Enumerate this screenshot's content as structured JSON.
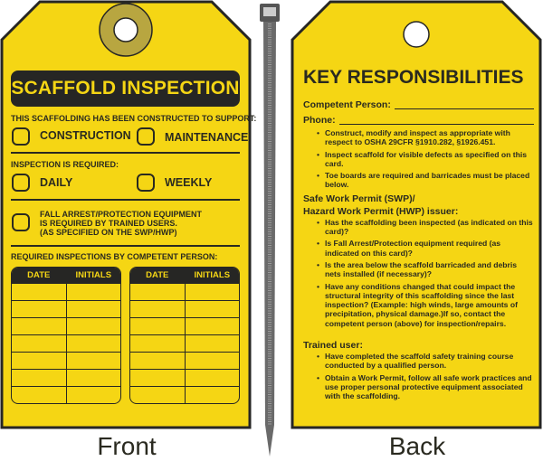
{
  "colors": {
    "tag": "#f5d614",
    "ink": "#262624",
    "grommet": "#b8a640"
  },
  "front": {
    "title": "SCAFFOLD INSPECTION",
    "support_label": "THIS SCAFFOLDING HAS BEEN CONSTRUCTED TO SUPPORT:",
    "support_options": [
      "CONSTRUCTION",
      "MAINTENANCE"
    ],
    "inspection_label": "INSPECTION IS REQUIRED:",
    "inspection_options": [
      "DAILY",
      "WEEKLY"
    ],
    "fall_arrest": [
      "FALL ARREST/PROTECTION EQUIPMENT",
      "IS REQUIRED BY TRAINED USERS.",
      "(AS SPECIFIED ON THE SWP/HWP)"
    ],
    "log_label": "REQUIRED INSPECTIONS BY COMPETENT PERSON:",
    "log_columns": [
      "DATE",
      "INITIALS"
    ],
    "caption": "Front"
  },
  "back": {
    "title": "KEY RESPONSIBILITIES",
    "competent_person_label": "Competent Person:",
    "phone_label": "Phone:",
    "competent_bullets": [
      "Construct, modify and inspect as appropriate with respect to OSHA  29CFR §1910.282, §1926.451.",
      "Inspect scaffold for visible defects as specified on this card.",
      "Toe boards are required and barricades must be placed below."
    ],
    "issuer_label_1": "Safe Work Permit (SWP)/",
    "issuer_label_2": "Hazard Work Permit (HWP) issuer:",
    "issuer_bullets": [
      "Has the scaffolding been inspected (as indicated on this card)?",
      "Is Fall Arrest/Protection equipment required (as indicated on this card)?",
      "Is the area below the scaffold barricaded and debris nets installed (if necessary)?",
      "Have any conditions changed that could impact the structural integrity of this scaffolding since the last inspection? (Example: high winds, large amounts of precipitation, physical damage.)If so, contact the competent person (above) for inspection/repairs."
    ],
    "trained_label": "Trained user:",
    "trained_bullets": [
      "Have completed the scaffold safety training course conducted by a qualified person.",
      "Obtain a Work Permit, follow all safe work practices and use proper personal protective equipment associated with the scaffolding."
    ],
    "caption": "Back"
  }
}
